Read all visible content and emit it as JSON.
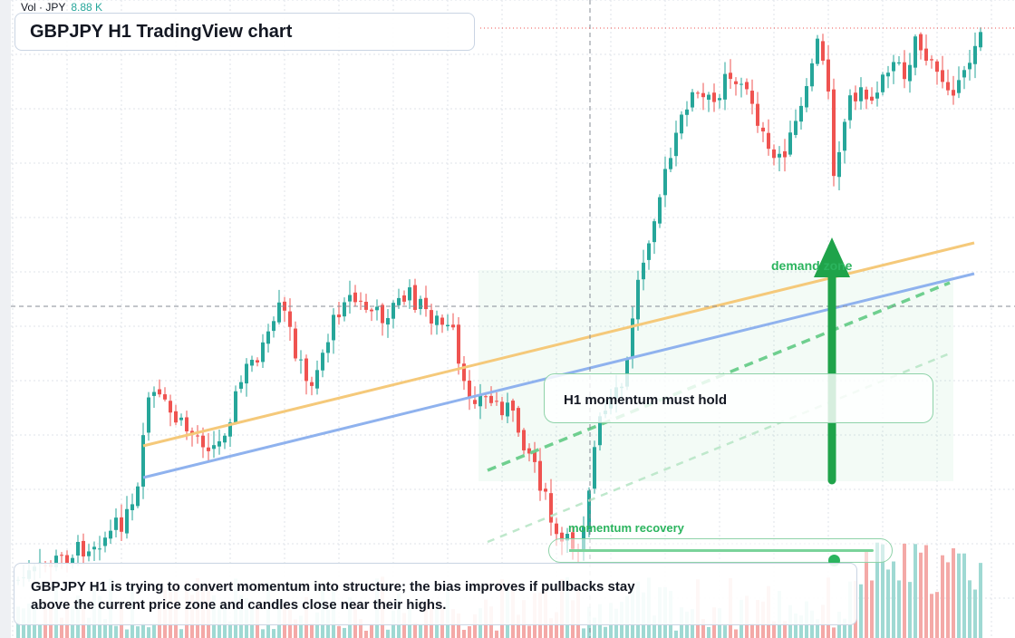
{
  "header": {
    "volume_label": "Vol · JPY",
    "volume_value": "8.88 K",
    "title": "GBPJPY H1 TradingView chart"
  },
  "annotations": {
    "callout_text": "H1 momentum must hold",
    "demand_zone_label": "demand zone",
    "momentum_label": "momentum recovery",
    "momentum_level": 0.87,
    "summary": "GBPJPY H1 is trying to convert momentum into structure; the bias improves if pullbacks stay above the current price zone and candles close near their highs."
  },
  "colors": {
    "bull": "#26a69a",
    "bear": "#ef5350",
    "vol_bull": "#9fd9d3",
    "vol_bear": "#f4a9a7",
    "trend_orange": "#f5c97a",
    "trend_blue": "#8fb2ee",
    "accent_green": "#2bb45e",
    "grid": "#dfe3ea"
  },
  "chart_data": {
    "type": "candlestick",
    "title": "GBPJPY H1",
    "price_scale_visible": false,
    "time_scale_visible": false,
    "gridlines": true,
    "candle_count": 180,
    "series": [
      {
        "name": "price",
        "kind": "candles",
        "color_up": "#26a69a",
        "color_down": "#ef5350"
      },
      {
        "name": "Vol · JPY",
        "kind": "volume",
        "last_value": "8.88 K"
      }
    ],
    "overlays": [
      "rising trendline (orange)",
      "rising trendline (blue)",
      "dashed projection (green)",
      "demand zone shading",
      "up arrow"
    ]
  }
}
